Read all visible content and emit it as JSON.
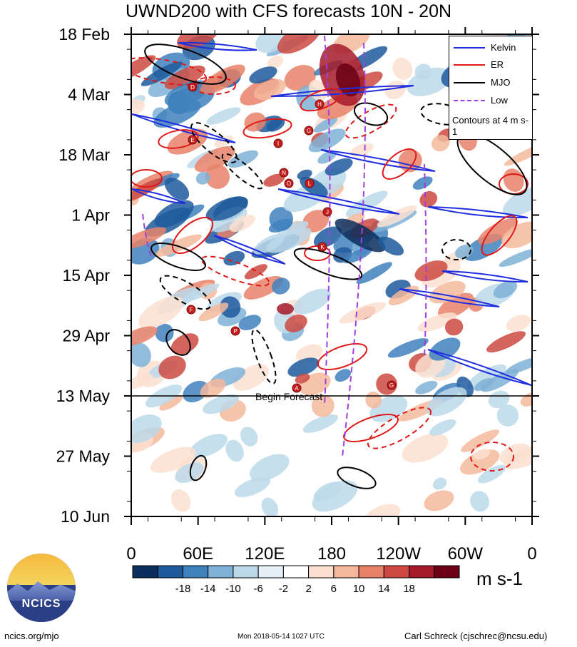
{
  "chart_data": {
    "type": "heatmap",
    "title": "UWND200 with CFS forecasts  10N - 20N",
    "y_axis": {
      "tick_labels": [
        "18 Feb",
        "4 Mar",
        "18 Mar",
        "1 Apr",
        "15 Apr",
        "29 Apr",
        "13 May",
        "27 May",
        "10 Jun"
      ],
      "direction": "time increases downward"
    },
    "x_axis": {
      "tick_labels": [
        "0",
        "60E",
        "120E",
        "180",
        "120W",
        "60W",
        "0"
      ],
      "range_degrees_east": [
        0,
        360
      ]
    },
    "colorbar": {
      "levels": [
        "-18",
        "-14",
        "-10",
        "-6",
        "-2",
        "2",
        "6",
        "10",
        "14",
        "18"
      ],
      "colors": [
        "#0b2e5c",
        "#1f5a9c",
        "#3f81bd",
        "#7fb2d6",
        "#bcd9ea",
        "#e5f0f6",
        "#ffffff",
        "#fbe0d0",
        "#f5b89c",
        "#e8826a",
        "#cc4a42",
        "#a51a2a",
        "#6b0016"
      ],
      "units": "m s-1"
    },
    "legend": {
      "position": "top-right",
      "entries": [
        {
          "name": "Kelvin",
          "color": "#1f2fe0",
          "style": "solid"
        },
        {
          "name": "ER",
          "color": "#e01818",
          "style": "solid"
        },
        {
          "name": "MJO",
          "color": "#000000",
          "style": "solid"
        },
        {
          "name": "Low",
          "color": "#a040e0",
          "style": "dashed"
        }
      ],
      "note": "Contours at 4 m s-1"
    },
    "forecast_marker": {
      "date": "13 May",
      "label": "Begin Forecast"
    }
  },
  "footer": {
    "left": "ncics.org/mjo",
    "center": "Mon 2018-05-14 1027 UTC",
    "right": "Carl Schreck (cjschrec@ncsu.edu)"
  },
  "logo": {
    "text": "NCICS"
  }
}
